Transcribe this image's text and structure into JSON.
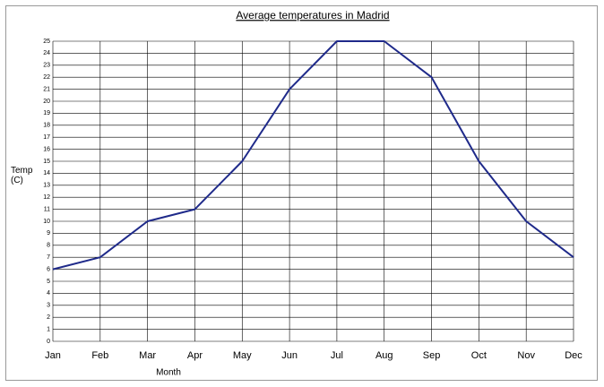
{
  "chart_data": {
    "type": "line",
    "title": "Average temperatures in Madrid",
    "x_label": "Month",
    "y_label": "Temp (C)",
    "categories": [
      "Jan",
      "Feb",
      "Mar",
      "Apr",
      "May",
      "Jun",
      "Jul",
      "Aug",
      "Sep",
      "Oct",
      "Nov",
      "Dec"
    ],
    "series": [
      {
        "color": "#1f2a8a",
        "values": [
          6,
          7,
          10,
          11,
          15,
          21,
          25,
          25,
          22,
          15,
          10,
          7
        ]
      }
    ],
    "ylim": [
      0,
      25
    ],
    "yticks": [
      0,
      1,
      2,
      3,
      4,
      5,
      6,
      7,
      8,
      9,
      10,
      11,
      12,
      13,
      14,
      15,
      16,
      17,
      18,
      19,
      20,
      21,
      22,
      23,
      24,
      25
    ],
    "grid": true
  }
}
